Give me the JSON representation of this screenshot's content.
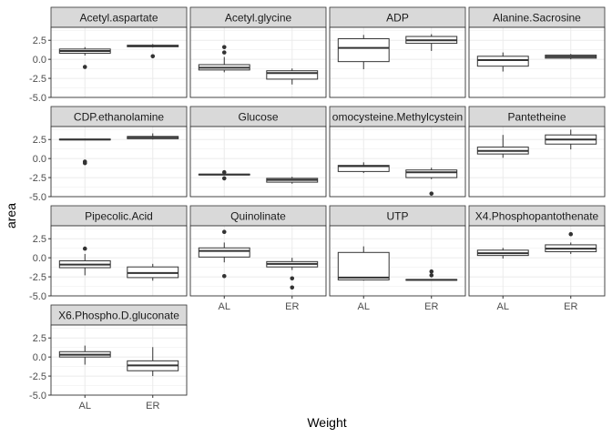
{
  "chart_data": {
    "type": "boxplot",
    "facet_layout": "4 columns, free y per row",
    "xlabel": "Weight",
    "ylabel": "area",
    "categories": [
      "AL",
      "ER"
    ],
    "y_ticks": [
      2.5,
      0.0,
      -2.5,
      -5.0
    ],
    "y_tick_labels": [
      "2.5",
      "0.0",
      "-2.5",
      "-5.0"
    ],
    "ylim": [
      -5.0,
      4.2
    ],
    "grid": true,
    "theme_colors": {
      "strip_fill": "#d9d9d9",
      "grid": "#ebebeb",
      "border": "#333333",
      "point": "#333333"
    },
    "panels": [
      {
        "title": "Acetyl.aspartate",
        "boxes": [
          {
            "group": "AL",
            "min": 0.5,
            "q1": 0.8,
            "median": 1.1,
            "q3": 1.35,
            "max": 1.6,
            "outliers": [
              -1.0
            ]
          },
          {
            "group": "ER",
            "min": 1.55,
            "q1": 1.65,
            "median": 1.75,
            "q3": 1.85,
            "max": 2.0,
            "outliers": [
              0.4
            ]
          }
        ]
      },
      {
        "title": "Acetyl.glycine",
        "boxes": [
          {
            "group": "AL",
            "min": -1.7,
            "q1": -1.4,
            "median": -1.1,
            "q3": -0.7,
            "max": 0.3,
            "outliers": [
              0.9,
              1.6
            ]
          },
          {
            "group": "ER",
            "min": -3.3,
            "q1": -2.6,
            "median": -1.8,
            "q3": -1.5,
            "max": -1.2,
            "outliers": []
          }
        ]
      },
      {
        "title": "ADP",
        "boxes": [
          {
            "group": "AL",
            "min": -1.3,
            "q1": -0.3,
            "median": 1.5,
            "q3": 2.7,
            "max": 3.2,
            "outliers": []
          },
          {
            "group": "ER",
            "min": 1.1,
            "q1": 2.1,
            "median": 2.5,
            "q3": 3.0,
            "max": 3.3,
            "outliers": []
          }
        ]
      },
      {
        "title": "Alanine.Sacrosine",
        "boxes": [
          {
            "group": "AL",
            "min": -1.6,
            "q1": -0.9,
            "median": -0.1,
            "q3": 0.4,
            "max": 0.9,
            "outliers": []
          },
          {
            "group": "ER",
            "min": 0.0,
            "q1": 0.15,
            "median": 0.35,
            "q3": 0.55,
            "max": 0.7,
            "outliers": []
          }
        ]
      },
      {
        "title": "CDP.ethanolamine",
        "boxes": [
          {
            "group": "AL",
            "min": 2.4,
            "q1": 2.45,
            "median": 2.5,
            "q3": 2.55,
            "max": 2.6,
            "outliers": [
              -0.4,
              -0.6
            ]
          },
          {
            "group": "ER",
            "min": 2.5,
            "q1": 2.6,
            "median": 2.8,
            "q3": 2.9,
            "max": 3.3,
            "outliers": []
          }
        ]
      },
      {
        "title": "Glucose",
        "boxes": [
          {
            "group": "AL",
            "min": -2.2,
            "q1": -2.15,
            "median": -2.1,
            "q3": -2.05,
            "max": -2.0,
            "outliers": [
              -1.8,
              -2.6
            ]
          },
          {
            "group": "ER",
            "min": -3.3,
            "q1": -3.1,
            "median": -2.8,
            "q3": -2.6,
            "max": -2.4,
            "outliers": []
          }
        ]
      },
      {
        "title": "omocysteine.Methylcystein",
        "boxes": [
          {
            "group": "AL",
            "min": -1.9,
            "q1": -1.7,
            "median": -1.0,
            "q3": -0.9,
            "max": -0.5,
            "outliers": []
          },
          {
            "group": "ER",
            "min": -2.7,
            "q1": -2.5,
            "median": -1.8,
            "q3": -1.5,
            "max": -1.2,
            "outliers": [
              -4.6
            ]
          }
        ]
      },
      {
        "title": "Pantetheine",
        "boxes": [
          {
            "group": "AL",
            "min": 0.1,
            "q1": 0.6,
            "median": 1.0,
            "q3": 1.5,
            "max": 3.1,
            "outliers": []
          },
          {
            "group": "ER",
            "min": 1.2,
            "q1": 1.9,
            "median": 2.5,
            "q3": 3.1,
            "max": 3.8,
            "outliers": []
          }
        ]
      },
      {
        "title": "Pipecolic.Acid",
        "boxes": [
          {
            "group": "AL",
            "min": -2.3,
            "q1": -1.3,
            "median": -0.9,
            "q3": -0.4,
            "max": 0.5,
            "outliers": [
              1.2
            ]
          },
          {
            "group": "ER",
            "min": -3.0,
            "q1": -2.6,
            "median": -2.0,
            "q3": -1.2,
            "max": -0.8,
            "outliers": []
          }
        ]
      },
      {
        "title": "Quinolinate",
        "boxes": [
          {
            "group": "AL",
            "min": -0.6,
            "q1": 0.1,
            "median": 0.9,
            "q3": 1.3,
            "max": 2.0,
            "outliers": [
              3.4,
              -2.4
            ]
          },
          {
            "group": "ER",
            "min": -1.6,
            "q1": -1.2,
            "median": -0.8,
            "q3": -0.5,
            "max": 0.0,
            "outliers": [
              -2.7,
              -3.9
            ]
          }
        ]
      },
      {
        "title": "UTP",
        "boxes": [
          {
            "group": "AL",
            "min": -3.0,
            "q1": -2.9,
            "median": -2.6,
            "q3": 0.7,
            "max": 1.5,
            "outliers": []
          },
          {
            "group": "ER",
            "min": -3.0,
            "q1": -2.95,
            "median": -2.9,
            "q3": -2.85,
            "max": -2.8,
            "outliers": [
              -1.8,
              -2.3
            ]
          }
        ]
      },
      {
        "title": "X4.Phosphopantothenate",
        "boxes": [
          {
            "group": "AL",
            "min": -0.1,
            "q1": 0.3,
            "median": 0.6,
            "q3": 1.0,
            "max": 1.3,
            "outliers": []
          },
          {
            "group": "ER",
            "min": 0.5,
            "q1": 0.8,
            "median": 1.2,
            "q3": 1.7,
            "max": 2.0,
            "outliers": [
              3.1
            ]
          }
        ]
      },
      {
        "title": "X6.Phospho.D.gluconate",
        "boxes": [
          {
            "group": "AL",
            "min": -1.0,
            "q1": 0.0,
            "median": 0.3,
            "q3": 0.7,
            "max": 1.5,
            "outliers": []
          },
          {
            "group": "ER",
            "min": -2.5,
            "q1": -1.8,
            "median": -1.1,
            "q3": -0.5,
            "max": 1.3,
            "outliers": []
          }
        ]
      }
    ]
  }
}
